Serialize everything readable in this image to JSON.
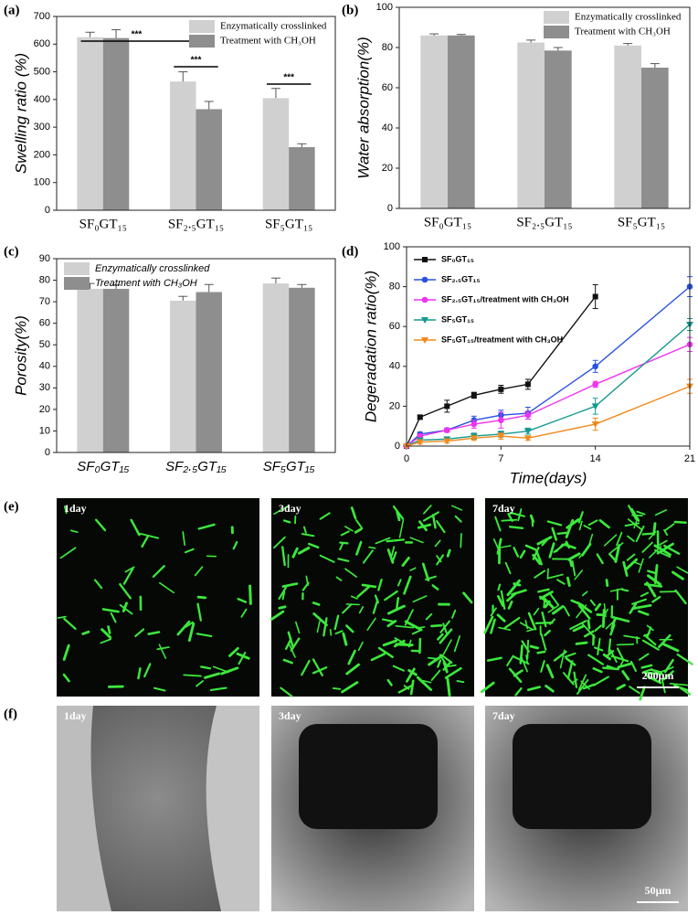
{
  "chart_data": [
    {
      "type": "bar",
      "panel_label": "(a)",
      "ylabel": "Swelling ratio (%)",
      "categories": [
        "SF₀GT₁₅",
        "SF₂.₅GT₁₅",
        "SF₅GT₁₅"
      ],
      "series": [
        {
          "name": "Enzymatically crosslinked",
          "color": "#d0d0d0",
          "values": [
            625,
            465,
            405
          ],
          "errors": [
            18,
            35,
            35
          ]
        },
        {
          "name": "Treatment with CH₃OH",
          "color": "#8e8e8e",
          "values": [
            622,
            365,
            228
          ],
          "errors": [
            30,
            28,
            12
          ]
        }
      ],
      "ylim": [
        0,
        700
      ],
      "yticks": [
        0,
        100,
        200,
        300,
        400,
        500,
        600,
        700
      ],
      "legend": "upper right",
      "annotations": [
        "***",
        "***",
        "***"
      ]
    },
    {
      "type": "bar",
      "panel_label": "(b)",
      "ylabel": "Water absorption(%)",
      "categories": [
        "SF₀GT₁₅",
        "SF₂.₅GT₁₅",
        "SF₅GT₁₅"
      ],
      "series": [
        {
          "name": "Enzymatically crosslinked",
          "color": "#d0d0d0",
          "values": [
            86,
            82.5,
            81
          ],
          "errors": [
            0.8,
            1.2,
            1
          ]
        },
        {
          "name": "Treatment with CH₃OH",
          "color": "#8e8e8e",
          "values": [
            86,
            78.5,
            70
          ],
          "errors": [
            0.5,
            1.5,
            2
          ]
        }
      ],
      "ylim": [
        0,
        100
      ],
      "yticks": [
        0,
        20,
        40,
        60,
        80,
        100
      ],
      "legend": "upper right"
    },
    {
      "type": "bar",
      "panel_label": "(c)",
      "ylabel": "Porosity(%)",
      "categories": [
        "SF₀GT₁₅",
        "SF₂.₅GT₁₅",
        "SF₅GT₁₅"
      ],
      "series": [
        {
          "name": "Enzymatically crosslinked",
          "color": "#d0d0d0",
          "values": [
            76,
            70.5,
            78.5
          ],
          "errors": [
            2.5,
            2,
            2.5
          ]
        },
        {
          "name": "Treatment with CH₃OH",
          "color": "#8e8e8e",
          "values": [
            76,
            74.5,
            76.5
          ],
          "errors": [
            1.8,
            3.5,
            1.5
          ]
        }
      ],
      "ylim": [
        0,
        90
      ],
      "yticks": [
        0,
        10,
        20,
        30,
        40,
        50,
        60,
        70,
        80,
        90
      ],
      "legend": "upper left"
    },
    {
      "type": "line",
      "panel_label": "(d)",
      "xlabel": "Time(days)",
      "ylabel": "Degeradation ratio(%)",
      "x": [
        0,
        1,
        3,
        5,
        7,
        9,
        14,
        21
      ],
      "series": [
        {
          "name": "SF₀GT₁₅",
          "color": "#111111",
          "marker": "square",
          "values": [
            0,
            14.5,
            20,
            25.5,
            28.5,
            31,
            75,
            null
          ],
          "errors": [
            0,
            1,
            3,
            1.5,
            2,
            2.5,
            6,
            null
          ]
        },
        {
          "name": "SF₂.₅GT₁₅",
          "color": "#2a52e0",
          "marker": "circle",
          "values": [
            0,
            6,
            8,
            13,
            15.5,
            16.5,
            40,
            80
          ],
          "errors": [
            0,
            1,
            1,
            2,
            2.5,
            3,
            3,
            5
          ]
        },
        {
          "name": "SF₂.₅GT₁₅/treatment with CH₃OH",
          "color": "#ee33ee",
          "marker": "circle",
          "values": [
            0,
            5,
            8,
            11,
            13,
            15.5,
            31,
            51
          ],
          "errors": [
            0,
            1,
            1,
            2,
            4,
            2,
            1.5,
            3.5
          ]
        },
        {
          "name": "SF₅GT₁₅",
          "color": "#14998f",
          "marker": "triangle-down",
          "values": [
            0,
            3,
            3.5,
            5,
            6,
            7.5,
            20,
            61
          ],
          "errors": [
            0,
            1,
            1,
            1.5,
            1.5,
            1.5,
            4,
            3
          ]
        },
        {
          "name": "SF₅GT₁₅/treatment with CH₃OH",
          "color": "#f08a1c",
          "marker": "triangle-down",
          "values": [
            0,
            2,
            2.5,
            4,
            5,
            4,
            11,
            30
          ],
          "errors": [
            0,
            1,
            1,
            1,
            1.5,
            1,
            3,
            3.5
          ]
        }
      ],
      "xlim": [
        0,
        21
      ],
      "xticks": [
        0,
        7,
        14,
        21
      ],
      "ylim": [
        0,
        100
      ],
      "yticks": [
        0,
        20,
        40,
        60,
        80,
        100
      ],
      "legend": "upper left"
    }
  ],
  "images": [
    {
      "panel_label": "(e)",
      "kind": "fluorescence",
      "panels": [
        {
          "label": "1day"
        },
        {
          "label": "3day"
        },
        {
          "label": "7day",
          "scale_bar": "200μm"
        }
      ]
    },
    {
      "panel_label": "(f)",
      "kind": "sem",
      "panels": [
        {
          "label": "1day"
        },
        {
          "label": "3day"
        },
        {
          "label": "7day",
          "scale_bar": "50μm"
        }
      ]
    }
  ]
}
